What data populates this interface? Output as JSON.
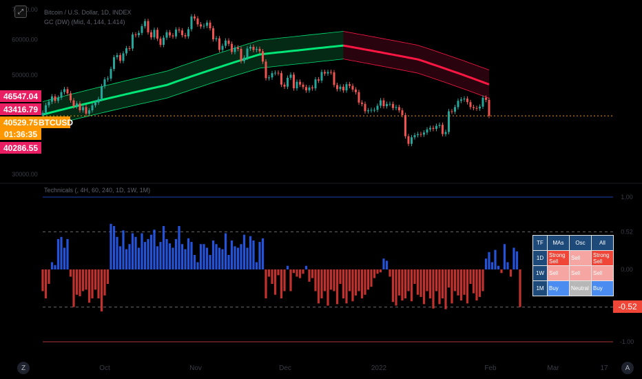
{
  "header": {
    "symbol_title": "Bitcoin / U.S. Dollar, 1D, INDEX",
    "indicator_label": "GC (DW) (Mid, 4, 144, 1.414)",
    "osc_label": "Technicals (, 4H, 60, 240, 1D, 1W, 1M)"
  },
  "price_labels": {
    "high_badge": "46547.04",
    "upper_badge": "43416.79",
    "last_price": "40529.75",
    "countdown": "01:36:35",
    "symbol": "BTCUSD",
    "lower_badge": "40286.55"
  },
  "price_axis_ticks": [
    "70000.00",
    "60000.00",
    "50000.00",
    "30000.00"
  ],
  "osc_axis_ticks": [
    "1.00",
    "0.52",
    "0.00",
    "-1.00"
  ],
  "osc_current_label": "-0.52",
  "time_axis": {
    "left_icon": "Z",
    "labels": [
      "Oct",
      "Nov",
      "Dec",
      "2022",
      "Feb",
      "Mar",
      "17"
    ],
    "right_icon": "A"
  },
  "table": {
    "headers": [
      "TF",
      "MAs",
      "Osc",
      "All"
    ],
    "rows": [
      {
        "tf": "1D",
        "mas": "Strong Sell",
        "osc": "Sell",
        "all": "Strong Sell"
      },
      {
        "tf": "1W",
        "mas": "Sell",
        "osc": "Sell",
        "all": "Sell"
      },
      {
        "tf": "1M",
        "mas": "Buy",
        "osc": "Neutral",
        "all": "Buy"
      }
    ]
  },
  "colors": {
    "up_candle": "#26a69a",
    "down_candle": "#ef5350",
    "band_green": "#00e676",
    "band_red": "#ff1744",
    "osc_positive": "#2962ff",
    "osc_negative": "#e53935",
    "last_price_line": "#ff9800"
  },
  "chart_data": [
    {
      "type": "candlestick",
      "title": "Bitcoin / U.S. Dollar, 1D, INDEX",
      "y_scale": "log",
      "ylim": [
        29000,
        72000
      ],
      "last_price": 40529.75,
      "x_labels": [
        "Oct",
        "Nov",
        "Dec",
        "2022",
        "Feb",
        "Mar"
      ],
      "candles": [
        {
          "t": "Sep",
          "c": 41200
        },
        {
          "t": "Sep",
          "c": 42800
        },
        {
          "t": "Sep",
          "c": 43600
        },
        {
          "t": "Sep",
          "c": 44800
        },
        {
          "t": "Sep",
          "c": 43800
        },
        {
          "t": "Sep",
          "c": 44500
        },
        {
          "t": "Sep",
          "c": 45800
        },
        {
          "t": "Sep",
          "c": 46500
        },
        {
          "t": "Sep",
          "c": 45500
        },
        {
          "t": "Sep",
          "c": 43900
        },
        {
          "t": "Sep",
          "c": 42600
        },
        {
          "t": "Sep",
          "c": 43200
        },
        {
          "t": "Sep",
          "c": 41700
        },
        {
          "t": "Sep",
          "c": 42400
        },
        {
          "t": "Sep",
          "c": 41000
        },
        {
          "t": "Sep",
          "c": 41700
        },
        {
          "t": "Sep",
          "c": 42800
        },
        {
          "t": "Sep",
          "c": 43400
        },
        {
          "t": "Oct",
          "c": 44200
        },
        {
          "t": "Oct",
          "c": 47200
        },
        {
          "t": "Oct",
          "c": 48900
        },
        {
          "t": "Oct",
          "c": 49100
        },
        {
          "t": "Oct",
          "c": 51600
        },
        {
          "t": "Oct",
          "c": 54800
        },
        {
          "t": "Oct",
          "c": 55400
        },
        {
          "t": "Oct",
          "c": 53800
        },
        {
          "t": "Oct",
          "c": 55900
        },
        {
          "t": "Oct",
          "c": 57400
        },
        {
          "t": "Oct",
          "c": 57300
        },
        {
          "t": "Oct",
          "c": 61600
        },
        {
          "t": "Oct",
          "c": 61400
        },
        {
          "t": "Oct",
          "c": 62100
        },
        {
          "t": "Oct",
          "c": 64300
        },
        {
          "t": "Oct",
          "c": 66000
        },
        {
          "t": "Oct",
          "c": 62300
        },
        {
          "t": "Oct",
          "c": 60700
        },
        {
          "t": "Oct",
          "c": 63100
        },
        {
          "t": "Oct",
          "c": 60300
        },
        {
          "t": "Oct",
          "c": 58400
        },
        {
          "t": "Oct",
          "c": 60600
        },
        {
          "t": "Oct",
          "c": 62300
        },
        {
          "t": "Oct",
          "c": 61300
        },
        {
          "t": "Nov",
          "c": 61000
        },
        {
          "t": "Nov",
          "c": 63200
        },
        {
          "t": "Nov",
          "c": 62900
        },
        {
          "t": "Nov",
          "c": 61400
        },
        {
          "t": "Nov",
          "c": 61000
        },
        {
          "t": "Nov",
          "c": 63300
        },
        {
          "t": "Nov",
          "c": 67600
        },
        {
          "t": "Nov",
          "c": 66900
        },
        {
          "t": "Nov",
          "c": 64900
        },
        {
          "t": "Nov",
          "c": 64200
        },
        {
          "t": "Nov",
          "c": 64400
        },
        {
          "t": "Nov",
          "c": 65500
        },
        {
          "t": "Nov",
          "c": 63600
        },
        {
          "t": "Nov",
          "c": 60100
        },
        {
          "t": "Nov",
          "c": 60400
        },
        {
          "t": "Nov",
          "c": 56900
        },
        {
          "t": "Nov",
          "c": 58100
        },
        {
          "t": "Nov",
          "c": 59700
        },
        {
          "t": "Nov",
          "c": 58700
        },
        {
          "t": "Nov",
          "c": 56300
        },
        {
          "t": "Nov",
          "c": 57600
        },
        {
          "t": "Nov",
          "c": 57200
        },
        {
          "t": "Nov",
          "c": 53700
        },
        {
          "t": "Nov",
          "c": 54700
        },
        {
          "t": "Nov",
          "c": 57300
        },
        {
          "t": "Nov",
          "c": 57800
        },
        {
          "t": "Nov",
          "c": 56900
        },
        {
          "t": "Dec",
          "c": 57200
        },
        {
          "t": "Dec",
          "c": 56500
        },
        {
          "t": "Dec",
          "c": 53600
        },
        {
          "t": "Dec",
          "c": 49200
        },
        {
          "t": "Dec",
          "c": 49400
        },
        {
          "t": "Dec",
          "c": 50500
        },
        {
          "t": "Dec",
          "c": 50600
        },
        {
          "t": "Dec",
          "c": 50500
        },
        {
          "t": "Dec",
          "c": 47600
        },
        {
          "t": "Dec",
          "c": 47100
        },
        {
          "t": "Dec",
          "c": 49300
        },
        {
          "t": "Dec",
          "c": 50100
        },
        {
          "t": "Dec",
          "c": 46700
        },
        {
          "t": "Dec",
          "c": 48300
        },
        {
          "t": "Dec",
          "c": 47600
        },
        {
          "t": "Dec",
          "c": 47000
        },
        {
          "t": "Dec",
          "c": 46200
        },
        {
          "t": "Dec",
          "c": 46900
        },
        {
          "t": "Dec",
          "c": 46700
        },
        {
          "t": "Dec",
          "c": 48900
        },
        {
          "t": "Dec",
          "c": 48600
        },
        {
          "t": "Dec",
          "c": 50800
        },
        {
          "t": "Dec",
          "c": 50400
        },
        {
          "t": "Dec",
          "c": 50800
        },
        {
          "t": "Dec",
          "c": 50700
        },
        {
          "t": "Dec",
          "c": 47500
        },
        {
          "t": "Dec",
          "c": 46500
        },
        {
          "t": "Dec",
          "c": 47100
        },
        {
          "t": "Dec",
          "c": 46200
        },
        {
          "t": "2022",
          "c": 47700
        },
        {
          "t": "2022",
          "c": 47300
        },
        {
          "t": "2022",
          "c": 46400
        },
        {
          "t": "2022",
          "c": 45800
        },
        {
          "t": "2022",
          "c": 43400
        },
        {
          "t": "2022",
          "c": 43100
        },
        {
          "t": "2022",
          "c": 41500
        },
        {
          "t": "2022",
          "c": 41700
        },
        {
          "t": "2022",
          "c": 41800
        },
        {
          "t": "2022",
          "c": 41800
        },
        {
          "t": "2022",
          "c": 42700
        },
        {
          "t": "2022",
          "c": 43900
        },
        {
          "t": "2022",
          "c": 42600
        },
        {
          "t": "2022",
          "c": 43100
        },
        {
          "t": "2022",
          "c": 43100
        },
        {
          "t": "2022",
          "c": 42200
        },
        {
          "t": "2022",
          "c": 42400
        },
        {
          "t": "2022",
          "c": 41700
        },
        {
          "t": "2022",
          "c": 40700
        },
        {
          "t": "2022",
          "c": 36500
        },
        {
          "t": "2022",
          "c": 35100
        },
        {
          "t": "2022",
          "c": 36300
        },
        {
          "t": "2022",
          "c": 36700
        },
        {
          "t": "2022",
          "c": 36900
        },
        {
          "t": "2022",
          "c": 36800
        },
        {
          "t": "2022",
          "c": 37200
        },
        {
          "t": "2022",
          "c": 37800
        },
        {
          "t": "2022",
          "c": 38100
        },
        {
          "t": "2022",
          "c": 37900
        },
        {
          "t": "2022",
          "c": 38500
        },
        {
          "t": "Feb",
          "c": 38700
        },
        {
          "t": "Feb",
          "c": 36900
        },
        {
          "t": "Feb",
          "c": 37300
        },
        {
          "t": "Feb",
          "c": 41500
        },
        {
          "t": "Feb",
          "c": 41400
        },
        {
          "t": "Feb",
          "c": 42400
        },
        {
          "t": "Feb",
          "c": 43800
        },
        {
          "t": "Feb",
          "c": 44100
        },
        {
          "t": "Feb",
          "c": 44300
        },
        {
          "t": "Feb",
          "c": 43500
        },
        {
          "t": "Feb",
          "c": 42400
        },
        {
          "t": "Feb",
          "c": 42200
        },
        {
          "t": "Feb",
          "c": 42100
        },
        {
          "t": "Feb",
          "c": 42500
        },
        {
          "t": "Feb",
          "c": 44500
        },
        {
          "t": "Feb",
          "c": 44000
        },
        {
          "t": "Feb",
          "c": 40529.75
        }
      ]
    },
    {
      "type": "area",
      "title": "GC (DW) (Mid, 4, 144, 1.414)",
      "series": [
        {
          "name": "Mid",
          "points": [
            [
              0,
              40800
            ],
            [
              40,
              47500
            ],
            [
              70,
              55600
            ],
            [
              97,
              58200
            ],
            [
              121,
              54200
            ],
            [
              148,
              46500
            ],
            [
              154,
              44500
            ]
          ]
        },
        {
          "name": "Upper",
          "points": [
            [
              0,
              43600
            ],
            [
              40,
              51000
            ],
            [
              70,
              59800
            ],
            [
              97,
              62600
            ],
            [
              121,
              58300
            ],
            [
              148,
              50100
            ],
            [
              154,
              47600
            ]
          ]
        },
        {
          "name": "Lower",
          "points": [
            [
              0,
              38200
            ],
            [
              40,
              44400
            ],
            [
              70,
              51800
            ],
            [
              97,
              54300
            ],
            [
              121,
              50500
            ],
            [
              148,
              43300
            ],
            [
              154,
              41600
            ]
          ]
        }
      ],
      "color_change_at_index": 97
    },
    {
      "type": "bar",
      "title": "Technicals (, 4H, 60, 240, 1D, 1W, 1M)",
      "ylim": [
        -1,
        1
      ],
      "reference_levels": [
        1.0,
        0.52,
        0,
        -0.52,
        -1.0
      ],
      "current_value": -0.52,
      "values": [
        -0.3,
        -0.4,
        -0.2,
        0.1,
        0.06,
        0.42,
        0.45,
        0.3,
        0.42,
        -0.1,
        -0.52,
        -0.35,
        -0.37,
        -0.3,
        -0.28,
        -0.46,
        -0.4,
        -0.28,
        -0.4,
        -0.58,
        -0.36,
        -0.2,
        0.63,
        0.6,
        0.45,
        0.32,
        0.54,
        0.28,
        0.35,
        0.5,
        0.45,
        0.3,
        0.5,
        0.38,
        0.42,
        0.48,
        0.55,
        0.32,
        0.38,
        0.6,
        0.42,
        0.36,
        0.3,
        0.42,
        0.6,
        0.35,
        0.28,
        0.43,
        0.38,
        0.2,
        0.1,
        0.35,
        0.35,
        0.3,
        0.2,
        0.4,
        0.35,
        0.3,
        0.28,
        0.5,
        0.2,
        0.4,
        0.32,
        0.3,
        0.35,
        0.48,
        0.3,
        0.46,
        0.4,
        0.1,
        0.38,
        0.43,
        -0.4,
        -0.1,
        -0.2,
        -0.35,
        -0.08,
        -0.4,
        -0.3,
        0.05,
        -0.3,
        -0.05,
        -0.1,
        -0.12,
        -0.06,
        0.05,
        -0.17,
        -0.12,
        -0.3,
        -0.47,
        -0.4,
        -0.3,
        -0.5,
        -0.28,
        -0.3,
        -0.48,
        -0.2,
        -0.4,
        -0.47,
        -0.3,
        -0.44,
        -0.36,
        -0.3,
        -0.4,
        -0.35,
        -0.28,
        -0.24,
        -0.12,
        -0.06,
        -0.04,
        0.15,
        0.12,
        -0.1,
        -0.45,
        -0.5,
        -0.36,
        -0.43,
        -0.4,
        -0.3,
        -0.44,
        -0.2,
        -0.35,
        -0.38,
        -0.48,
        -0.3,
        -0.4,
        -0.54,
        -0.3,
        -0.48,
        -0.4,
        -0.55,
        -0.25,
        -0.47,
        -0.3,
        -0.36,
        -0.43,
        -0.35,
        -0.47,
        -0.2,
        -0.33,
        -0.43,
        -0.38,
        -0.3,
        0.15,
        0.24,
        0.1,
        0.27,
        0.05,
        -0.05,
        0.35,
        0.1,
        -0.1,
        0.3,
        0.25,
        -0.52
      ]
    }
  ]
}
